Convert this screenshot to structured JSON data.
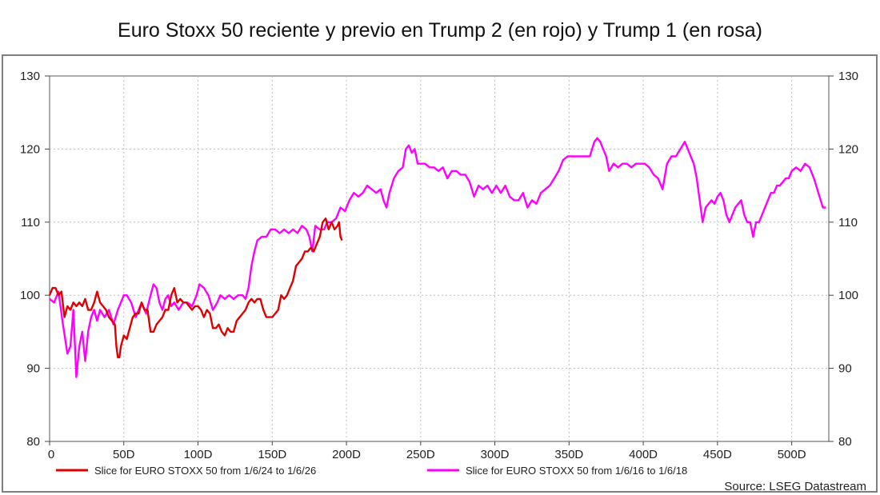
{
  "chart_data": {
    "type": "line",
    "title": "Euro Stoxx 50 reciente y previo en Trump 2 (en rojo) y Trump 1 (en rosa)",
    "xlim": [
      0,
      525
    ],
    "ylim": [
      80,
      130
    ],
    "x_ticks": [
      {
        "value": 0,
        "label": "0"
      },
      {
        "value": 50,
        "label": "50D"
      },
      {
        "value": 100,
        "label": "100D"
      },
      {
        "value": 150,
        "label": "150D"
      },
      {
        "value": 200,
        "label": "200D"
      },
      {
        "value": 250,
        "label": "250D"
      },
      {
        "value": 300,
        "label": "300D"
      },
      {
        "value": 350,
        "label": "350D"
      },
      {
        "value": 400,
        "label": "400D"
      },
      {
        "value": 450,
        "label": "450D"
      },
      {
        "value": 500,
        "label": "500D"
      }
    ],
    "y_ticks": [
      {
        "value": 80,
        "label": "80"
      },
      {
        "value": 90,
        "label": "90"
      },
      {
        "value": 100,
        "label": "100"
      },
      {
        "value": 110,
        "label": "110"
      },
      {
        "value": 120,
        "label": "120"
      },
      {
        "value": 130,
        "label": "130"
      }
    ],
    "grid": true,
    "legend_position": "bottom",
    "source": "Source: LSEG Datastream",
    "series": [
      {
        "name": "Slice for EURO STOXX 50 from 1/6/16 to 1/6/18",
        "color": "#ff00ff",
        "points": [
          [
            0,
            99.5
          ],
          [
            3,
            99
          ],
          [
            6,
            100.5
          ],
          [
            9,
            96
          ],
          [
            12,
            92
          ],
          [
            14,
            93
          ],
          [
            16,
            98
          ],
          [
            18,
            88.8
          ],
          [
            20,
            93
          ],
          [
            22,
            95
          ],
          [
            24,
            91
          ],
          [
            26,
            95
          ],
          [
            28,
            97
          ],
          [
            30,
            98
          ],
          [
            32,
            96.5
          ],
          [
            34,
            98
          ],
          [
            37,
            97
          ],
          [
            40,
            98
          ],
          [
            43,
            96
          ],
          [
            46,
            98
          ],
          [
            48,
            99
          ],
          [
            50,
            100
          ],
          [
            52,
            100
          ],
          [
            55,
            99
          ],
          [
            58,
            97
          ],
          [
            62,
            99
          ],
          [
            65,
            97.5
          ],
          [
            68,
            100
          ],
          [
            70,
            101.5
          ],
          [
            72,
            101
          ],
          [
            74,
            99
          ],
          [
            76,
            98
          ],
          [
            78,
            99.5
          ],
          [
            80,
            100
          ],
          [
            82,
            98.5
          ],
          [
            84,
            99
          ],
          [
            87,
            98
          ],
          [
            90,
            99
          ],
          [
            93,
            99
          ],
          [
            96,
            98.5
          ],
          [
            99,
            100
          ],
          [
            101,
            101.5
          ],
          [
            104,
            101
          ],
          [
            107,
            100
          ],
          [
            110,
            98
          ],
          [
            113,
            99
          ],
          [
            115,
            100
          ],
          [
            118,
            99.5
          ],
          [
            121,
            100
          ],
          [
            124,
            99.5
          ],
          [
            127,
            100
          ],
          [
            130,
            100
          ],
          [
            132,
            99.5
          ],
          [
            134,
            101
          ],
          [
            136,
            104
          ],
          [
            138,
            106
          ],
          [
            140,
            107.5
          ],
          [
            143,
            108
          ],
          [
            146,
            108
          ],
          [
            149,
            109
          ],
          [
            152,
            109
          ],
          [
            155,
            108.5
          ],
          [
            158,
            109
          ],
          [
            161,
            108.5
          ],
          [
            164,
            109
          ],
          [
            167,
            108.5
          ],
          [
            170,
            109.5
          ],
          [
            173,
            109
          ],
          [
            175,
            108
          ],
          [
            177,
            106
          ],
          [
            179,
            109.5
          ],
          [
            182,
            109
          ],
          [
            185,
            109
          ],
          [
            187,
            110
          ],
          [
            190,
            110
          ],
          [
            193,
            110.5
          ],
          [
            196,
            112
          ],
          [
            199,
            111.5
          ],
          [
            202,
            113
          ],
          [
            205,
            114
          ],
          [
            208,
            113.5
          ],
          [
            211,
            114
          ],
          [
            214,
            115
          ],
          [
            217,
            114.5
          ],
          [
            220,
            114
          ],
          [
            223,
            114.5
          ],
          [
            225,
            113
          ],
          [
            227,
            112
          ],
          [
            229,
            114
          ],
          [
            232,
            116
          ],
          [
            235,
            117
          ],
          [
            238,
            117.5
          ],
          [
            240,
            120
          ],
          [
            242,
            120.5
          ],
          [
            244,
            119.5
          ],
          [
            246,
            120
          ],
          [
            248,
            118
          ],
          [
            250,
            118
          ],
          [
            253,
            118
          ],
          [
            256,
            117.5
          ],
          [
            259,
            117.5
          ],
          [
            262,
            117
          ],
          [
            265,
            117.5
          ],
          [
            268,
            116
          ],
          [
            271,
            117
          ],
          [
            274,
            117
          ],
          [
            277,
            116.5
          ],
          [
            280,
            116.5
          ],
          [
            283,
            115.5
          ],
          [
            286,
            113.5
          ],
          [
            289,
            115
          ],
          [
            292,
            114.5
          ],
          [
            295,
            115
          ],
          [
            298,
            114
          ],
          [
            301,
            115
          ],
          [
            304,
            114
          ],
          [
            307,
            115
          ],
          [
            310,
            113.5
          ],
          [
            313,
            113
          ],
          [
            316,
            113
          ],
          [
            319,
            114
          ],
          [
            322,
            112
          ],
          [
            325,
            113
          ],
          [
            328,
            112.5
          ],
          [
            331,
            114
          ],
          [
            334,
            114.5
          ],
          [
            337,
            115
          ],
          [
            340,
            116
          ],
          [
            343,
            117
          ],
          [
            346,
            118.5
          ],
          [
            349,
            119
          ],
          [
            352,
            119
          ],
          [
            355,
            119
          ],
          [
            358,
            119
          ],
          [
            361,
            119
          ],
          [
            364,
            119
          ],
          [
            367,
            121
          ],
          [
            369,
            121.5
          ],
          [
            371,
            121
          ],
          [
            373,
            120
          ],
          [
            375,
            119
          ],
          [
            377,
            117
          ],
          [
            380,
            118
          ],
          [
            383,
            117.5
          ],
          [
            386,
            118
          ],
          [
            389,
            118
          ],
          [
            392,
            117.5
          ],
          [
            395,
            118
          ],
          [
            398,
            118
          ],
          [
            401,
            118
          ],
          [
            404,
            117.5
          ],
          [
            407,
            116.5
          ],
          [
            410,
            116
          ],
          [
            413,
            114.5
          ],
          [
            416,
            118
          ],
          [
            419,
            119
          ],
          [
            422,
            119
          ],
          [
            425,
            120
          ],
          [
            428,
            121
          ],
          [
            431,
            119.5
          ],
          [
            434,
            118
          ],
          [
            436,
            116
          ],
          [
            438,
            113
          ],
          [
            440,
            110
          ],
          [
            442,
            112
          ],
          [
            444,
            112.5
          ],
          [
            446,
            113
          ],
          [
            448,
            112.5
          ],
          [
            450,
            113.5
          ],
          [
            452,
            114
          ],
          [
            454,
            113
          ],
          [
            456,
            111
          ],
          [
            458,
            110
          ],
          [
            460,
            111
          ],
          [
            462,
            112
          ],
          [
            464,
            112.5
          ],
          [
            466,
            113
          ],
          [
            468,
            111
          ],
          [
            470,
            110
          ],
          [
            472,
            110
          ],
          [
            474,
            108
          ],
          [
            476,
            110
          ],
          [
            478,
            110
          ],
          [
            480,
            111
          ],
          [
            482,
            112
          ],
          [
            484,
            113
          ],
          [
            486,
            114
          ],
          [
            488,
            114
          ],
          [
            490,
            115
          ],
          [
            492,
            115
          ],
          [
            494,
            115.5
          ],
          [
            496,
            116
          ],
          [
            498,
            116
          ],
          [
            500,
            117
          ],
          [
            503,
            117.5
          ],
          [
            506,
            117
          ],
          [
            509,
            118
          ],
          [
            512,
            117.5
          ],
          [
            515,
            116
          ],
          [
            518,
            114
          ],
          [
            521,
            112
          ],
          [
            523,
            112
          ]
        ]
      },
      {
        "name": "Slice for EURO STOXX 50 from 1/6/24 to 1/6/26",
        "color": "#e00000",
        "points": [
          [
            0,
            100
          ],
          [
            2,
            101
          ],
          [
            4,
            101
          ],
          [
            6,
            100
          ],
          [
            8,
            100.5
          ],
          [
            10,
            97
          ],
          [
            12,
            98.5
          ],
          [
            14,
            98
          ],
          [
            16,
            99
          ],
          [
            18,
            98.5
          ],
          [
            20,
            99
          ],
          [
            22,
            98.5
          ],
          [
            24,
            99.5
          ],
          [
            26,
            98
          ],
          [
            28,
            98
          ],
          [
            30,
            99
          ],
          [
            32,
            100.5
          ],
          [
            34,
            99
          ],
          [
            36,
            98.5
          ],
          [
            38,
            98
          ],
          [
            40,
            97
          ],
          [
            42,
            96.5
          ],
          [
            44,
            96
          ],
          [
            45,
            93
          ],
          [
            46,
            91.5
          ],
          [
            47,
            91.5
          ],
          [
            48,
            93
          ],
          [
            50,
            94.5
          ],
          [
            52,
            94
          ],
          [
            54,
            95.5
          ],
          [
            56,
            97
          ],
          [
            58,
            97.5
          ],
          [
            60,
            97.5
          ],
          [
            62,
            99
          ],
          [
            64,
            98
          ],
          [
            66,
            98
          ],
          [
            68,
            95
          ],
          [
            70,
            95
          ],
          [
            72,
            96
          ],
          [
            74,
            96.5
          ],
          [
            76,
            97
          ],
          [
            78,
            98
          ],
          [
            80,
            98
          ],
          [
            82,
            100
          ],
          [
            84,
            101
          ],
          [
            86,
            99
          ],
          [
            88,
            99.5
          ],
          [
            90,
            99
          ],
          [
            92,
            99
          ],
          [
            94,
            98.5
          ],
          [
            96,
            98
          ],
          [
            98,
            98.5
          ],
          [
            100,
            98.5
          ],
          [
            102,
            98
          ],
          [
            104,
            97
          ],
          [
            106,
            98
          ],
          [
            108,
            97.5
          ],
          [
            110,
            95.5
          ],
          [
            112,
            95.5
          ],
          [
            114,
            96
          ],
          [
            116,
            95
          ],
          [
            118,
            94.5
          ],
          [
            120,
            95.5
          ],
          [
            122,
            95
          ],
          [
            124,
            95
          ],
          [
            126,
            96.5
          ],
          [
            128,
            97
          ],
          [
            130,
            97.5
          ],
          [
            132,
            98
          ],
          [
            134,
            99
          ],
          [
            136,
            99.5
          ],
          [
            138,
            99
          ],
          [
            140,
            99.5
          ],
          [
            142,
            99.5
          ],
          [
            144,
            98
          ],
          [
            146,
            97
          ],
          [
            148,
            97
          ],
          [
            150,
            97
          ],
          [
            152,
            97.5
          ],
          [
            154,
            98
          ],
          [
            156,
            100
          ],
          [
            158,
            99.5
          ],
          [
            160,
            100
          ],
          [
            162,
            101
          ],
          [
            164,
            102
          ],
          [
            166,
            104
          ],
          [
            168,
            104.5
          ],
          [
            170,
            105
          ],
          [
            172,
            106
          ],
          [
            174,
            106
          ],
          [
            176,
            106.5
          ],
          [
            178,
            106
          ],
          [
            180,
            107
          ],
          [
            182,
            108
          ],
          [
            184,
            110
          ],
          [
            186,
            110.5
          ],
          [
            188,
            109
          ],
          [
            190,
            110
          ],
          [
            192,
            109
          ],
          [
            194,
            109.5
          ],
          [
            195,
            110
          ],
          [
            196,
            108
          ],
          [
            197,
            107.5
          ]
        ]
      }
    ]
  }
}
